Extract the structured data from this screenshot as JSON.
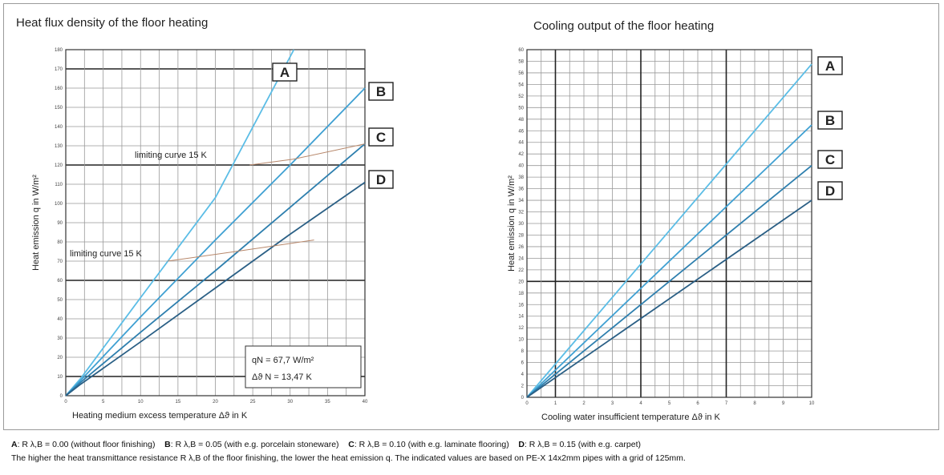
{
  "left_chart": {
    "title": "Heat flux density of the floor heating",
    "ylabel": "Heat emission q in W/m²",
    "xlabel": "Heating medium excess temperature  Δϑ in K",
    "annotation_upper": "limiting curve 15 K",
    "annotation_lower": "limiting curve 15 K",
    "infobox_line1": "qN   =  67,7 W/m²",
    "infobox_line2": "Δϑ N  = 13,47 K"
  },
  "right_chart": {
    "title": "Cooling output of the floor heating",
    "ylabel": "Heat emission q in W/m²",
    "xlabel": "Cooling water insufficient temperature  Δϑ in K"
  },
  "curve_labels": [
    "A",
    "B",
    "C",
    "D"
  ],
  "chart_data": [
    {
      "type": "line",
      "title": "Heat flux density of the floor heating",
      "xlabel": "Heating medium excess temperature  Δϑ in K",
      "ylabel": "Heat emission q in W/m²",
      "xlim": [
        0,
        40
      ],
      "ylim": [
        0,
        180
      ],
      "xticks": [
        0,
        5,
        10,
        15,
        20,
        25,
        30,
        35,
        40
      ],
      "yticks": [
        0,
        10,
        20,
        30,
        40,
        50,
        60,
        70,
        80,
        90,
        100,
        110,
        120,
        130,
        140,
        150,
        160,
        170,
        180
      ],
      "grid": true,
      "series": [
        {
          "name": "A",
          "x": [
            0,
            2,
            10,
            20,
            30.5
          ],
          "y": [
            0,
            9,
            51,
            103,
            180
          ]
        },
        {
          "name": "B",
          "x": [
            0,
            2,
            10,
            20,
            30,
            40
          ],
          "y": [
            0,
            8,
            41,
            81,
            120,
            160
          ]
        },
        {
          "name": "C",
          "x": [
            0,
            2,
            10,
            20,
            30,
            40
          ],
          "y": [
            0,
            7,
            33,
            65,
            98,
            131
          ]
        },
        {
          "name": "D",
          "x": [
            0,
            2,
            10,
            20,
            30,
            40
          ],
          "y": [
            0,
            6,
            28,
            56,
            84,
            111
          ]
        }
      ],
      "limiting_curves": [
        {
          "label": "limiting curve 15 K",
          "x": [
            24.6,
            30.4,
            40
          ],
          "y": [
            120,
            123,
            131
          ]
        },
        {
          "label": "limiting curve 15 K",
          "x": [
            13.6,
            22.7,
            33.2
          ],
          "y": [
            70,
            75,
            81
          ]
        }
      ],
      "infobox": {
        "qN": "67,7 W/m²",
        "dtN": "13,47 K"
      }
    },
    {
      "type": "line",
      "title": "Cooling output of the floor heating",
      "xlabel": "Cooling water insufficient temperature  Δϑ in K",
      "ylabel": "Heat emission q in W/m²",
      "xlim": [
        0,
        10
      ],
      "ylim": [
        0,
        60
      ],
      "xticks": [
        0,
        1,
        2,
        3,
        4,
        5,
        6,
        7,
        8,
        9,
        10
      ],
      "yticks": [
        0,
        2,
        4,
        6,
        8,
        10,
        12,
        14,
        16,
        18,
        20,
        22,
        24,
        26,
        28,
        30,
        32,
        34,
        36,
        38,
        40,
        42,
        44,
        46,
        48,
        50,
        52,
        54,
        56,
        58,
        60
      ],
      "grid": true,
      "series": [
        {
          "name": "A",
          "x": [
            0,
            10
          ],
          "y": [
            0,
            57.5
          ]
        },
        {
          "name": "B",
          "x": [
            0,
            10
          ],
          "y": [
            0,
            47
          ]
        },
        {
          "name": "C",
          "x": [
            0,
            10
          ],
          "y": [
            0,
            40
          ]
        },
        {
          "name": "D",
          "x": [
            0,
            10
          ],
          "y": [
            0,
            34
          ]
        }
      ]
    }
  ],
  "footnote": {
    "line1_parts": [
      {
        "key": "A",
        "text": ": R λ,B = 0.00 (without floor finishing)"
      },
      {
        "key": "B",
        "text": ": R λ,B = 0.05 (with e.g. porcelain stoneware)"
      },
      {
        "key": "C",
        "text": ": R λ,B = 0.10 (with e.g. laminate flooring)"
      },
      {
        "key": "D",
        "text": ": R λ,B  = 0.15 (with e.g. carpet)"
      }
    ],
    "line2": "The higher the heat transmittance resistance R λ,B of the floor finishing, the lower the heat emission q. The indicated values are based on  PE-X 14x2mm pipes with a grid of 125mm."
  },
  "colors": {
    "A": "#5bbde6",
    "B": "#3fa0d2",
    "C": "#2e7fae",
    "D": "#2a5f85",
    "limit": "#b7876a",
    "grid_minor": "#999999",
    "grid_major": "#222222"
  }
}
